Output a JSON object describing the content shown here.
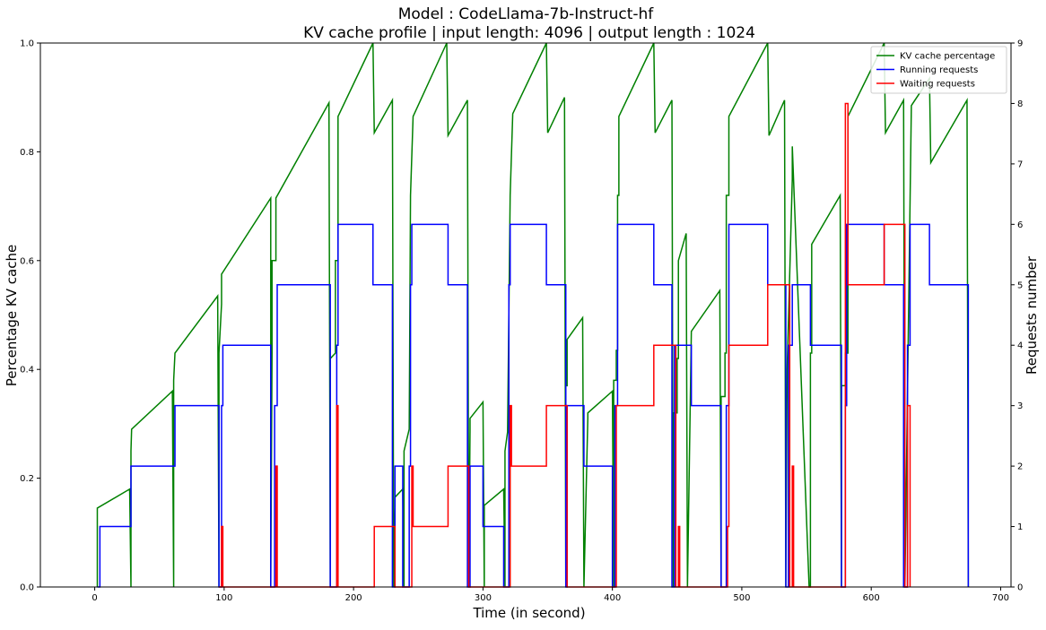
{
  "chart_data": {
    "type": "line",
    "title": "Model : CodeLlama-7b-Instruct-hf",
    "subtitle": "KV cache profile | input length: 4096 | output length : 1024",
    "xlabel": "Time (in second)",
    "ylabel": "Percentage KV cache",
    "y2label": "Requests number",
    "xlim": [
      -42,
      708
    ],
    "ylim": [
      0,
      1
    ],
    "y2lim": [
      0,
      9
    ],
    "x_ticks": [
      0,
      100,
      200,
      300,
      400,
      500,
      600,
      700
    ],
    "y_ticks": [
      0.0,
      0.2,
      0.4,
      0.6,
      0.8,
      1.0
    ],
    "y2_ticks": [
      0,
      1,
      2,
      3,
      4,
      5,
      6,
      7,
      8,
      9
    ],
    "grid": false,
    "legend_position": "top-right",
    "series": [
      {
        "name": "KV cache percentage",
        "color": "#008000",
        "axis": "left",
        "x": [
          2,
          2,
          27,
          28,
          28,
          28.5,
          60,
          61,
          61,
          62,
          95,
          96,
          96,
          98,
          98,
          136,
          136,
          137,
          137,
          140,
          140,
          181,
          182,
          182,
          186,
          186,
          188,
          188,
          215,
          216,
          216,
          230,
          231,
          231,
          232,
          232,
          238,
          239,
          239,
          243,
          243,
          244,
          244,
          246,
          246,
          272,
          273,
          273,
          288,
          289,
          289,
          290,
          290,
          300,
          301,
          301,
          316,
          317,
          317,
          319,
          319,
          321,
          321,
          323,
          323,
          349,
          350,
          350,
          363,
          364,
          364,
          365,
          365,
          377,
          378,
          378,
          381,
          381,
          400,
          401,
          401,
          403,
          403,
          404,
          404,
          405,
          405,
          432,
          433,
          433,
          446,
          447,
          447,
          450,
          450,
          451,
          451,
          457,
          458,
          458,
          461,
          461,
          483,
          484,
          484,
          487,
          487,
          488,
          488,
          490,
          490,
          520,
          521,
          521,
          533,
          534,
          534,
          535,
          535,
          539,
          539,
          552,
          553,
          553,
          554,
          554,
          576,
          577,
          577,
          580,
          580,
          582,
          582,
          610,
          611,
          611,
          625,
          626,
          626,
          631,
          631,
          645,
          646,
          646,
          674,
          675,
          675
        ],
        "y": [
          0.0,
          0.145,
          0.18,
          0.0,
          0.25,
          0.29,
          0.36,
          0.0,
          0.38,
          0.43,
          0.535,
          0.0,
          0.43,
          0.52,
          0.575,
          0.715,
          0.0,
          0.43,
          0.6,
          0.6,
          0.715,
          0.89,
          0.0,
          0.42,
          0.43,
          0.6,
          0.6,
          0.865,
          1.0,
          0.835,
          0.835,
          0.895,
          0.0,
          0.0,
          0.15,
          0.165,
          0.18,
          0.0,
          0.25,
          0.29,
          0.29,
          0.72,
          0.72,
          0.865,
          0.865,
          1.0,
          0.83,
          0.83,
          0.895,
          0.0,
          0.0,
          0.29,
          0.31,
          0.34,
          0.0,
          0.15,
          0.18,
          0.0,
          0.25,
          0.285,
          0.285,
          0.72,
          0.72,
          0.87,
          0.87,
          1.0,
          0.835,
          0.835,
          0.9,
          0.0,
          0.37,
          0.37,
          0.455,
          0.495,
          0.0,
          0.0,
          0.31,
          0.32,
          0.36,
          0.0,
          0.38,
          0.38,
          0.435,
          0.435,
          0.72,
          0.72,
          0.865,
          1.0,
          0.835,
          0.835,
          0.895,
          0.0,
          0.32,
          0.32,
          0.42,
          0.42,
          0.6,
          0.65,
          0.0,
          0.0,
          0.47,
          0.47,
          0.545,
          0.0,
          0.35,
          0.35,
          0.43,
          0.43,
          0.72,
          0.72,
          0.865,
          1.0,
          0.83,
          0.83,
          0.895,
          0.0,
          0.0,
          0.4,
          0.4,
          0.75,
          0.81,
          0.0,
          0.0,
          0.43,
          0.43,
          0.63,
          0.72,
          0.0,
          0.37,
          0.37,
          0.43,
          0.43,
          0.865,
          1.0,
          0.835,
          0.835,
          0.895,
          0.0,
          0.0,
          0.885,
          0.885,
          0.935,
          0.78,
          0.78,
          0.895,
          0.0,
          0.0
        ]
      },
      {
        "name": "Running requests",
        "color": "#0000ff",
        "axis": "right",
        "steps": [
          [
            2,
            0
          ],
          [
            4,
            1
          ],
          [
            28,
            2
          ],
          [
            62,
            3
          ],
          [
            96,
            0
          ],
          [
            98,
            3
          ],
          [
            99,
            4
          ],
          [
            136,
            0
          ],
          [
            139,
            3
          ],
          [
            141,
            5
          ],
          [
            182,
            0
          ],
          [
            187,
            4
          ],
          [
            188,
            6
          ],
          [
            215,
            5
          ],
          [
            230,
            0
          ],
          [
            232,
            2
          ],
          [
            238,
            0
          ],
          [
            243,
            2
          ],
          [
            244,
            5
          ],
          [
            245,
            6
          ],
          [
            273,
            5
          ],
          [
            288,
            0
          ],
          [
            290,
            2
          ],
          [
            300,
            1
          ],
          [
            316,
            0
          ],
          [
            320,
            5
          ],
          [
            321,
            6
          ],
          [
            349,
            5
          ],
          [
            364,
            0
          ],
          [
            365,
            3
          ],
          [
            378,
            2
          ],
          [
            400,
            0
          ],
          [
            402,
            3
          ],
          [
            404,
            6
          ],
          [
            432,
            5
          ],
          [
            446,
            0
          ],
          [
            448,
            4
          ],
          [
            461,
            3
          ],
          [
            484,
            0
          ],
          [
            488,
            3
          ],
          [
            490,
            6
          ],
          [
            520,
            5
          ],
          [
            534,
            0
          ],
          [
            536,
            4
          ],
          [
            539,
            5
          ],
          [
            553,
            4
          ],
          [
            577,
            0
          ],
          [
            580,
            3
          ],
          [
            581,
            6
          ],
          [
            610,
            5
          ],
          [
            625,
            0
          ],
          [
            628,
            4
          ],
          [
            630,
            6
          ],
          [
            645,
            5
          ],
          [
            675,
            0
          ]
        ]
      },
      {
        "name": "Waiting requests",
        "color": "#ff0000",
        "axis": "right",
        "steps": [
          [
            96,
            0
          ],
          [
            98,
            1
          ],
          [
            99,
            0
          ],
          [
            137,
            0
          ],
          [
            140,
            2
          ],
          [
            141,
            0
          ],
          [
            185,
            0
          ],
          [
            187,
            3
          ],
          [
            188,
            0
          ],
          [
            215,
            0
          ],
          [
            216,
            1
          ],
          [
            232,
            0
          ],
          [
            244,
            0
          ],
          [
            245,
            2
          ],
          [
            246,
            1
          ],
          [
            273,
            2
          ],
          [
            289,
            0
          ],
          [
            320,
            0
          ],
          [
            321,
            3
          ],
          [
            322,
            2
          ],
          [
            349,
            3
          ],
          [
            365,
            0
          ],
          [
            402,
            0
          ],
          [
            403,
            3
          ],
          [
            432,
            4
          ],
          [
            449,
            0
          ],
          [
            451,
            1
          ],
          [
            452,
            0
          ],
          [
            487,
            0
          ],
          [
            489,
            1
          ],
          [
            490,
            4
          ],
          [
            520,
            5
          ],
          [
            537,
            0
          ],
          [
            539,
            2
          ],
          [
            540,
            0
          ],
          [
            578,
            0
          ],
          [
            580,
            8
          ],
          [
            582,
            5
          ],
          [
            610,
            6
          ],
          [
            626,
            0
          ],
          [
            628,
            3
          ],
          [
            630,
            0
          ]
        ]
      }
    ]
  }
}
